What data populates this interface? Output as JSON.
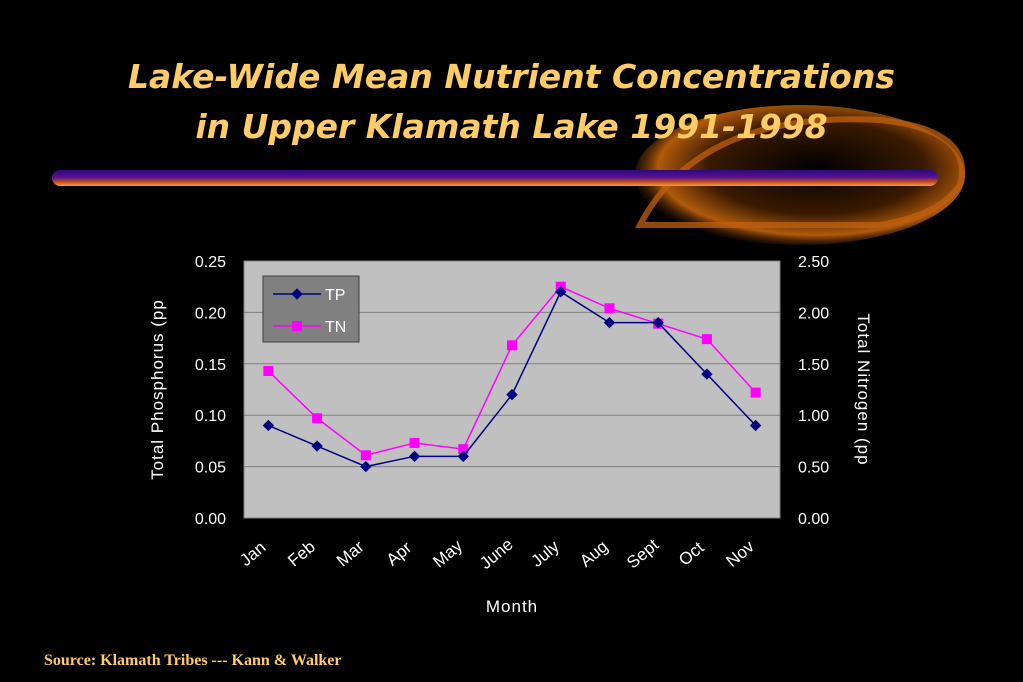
{
  "slide": {
    "title_line1": "Lake-Wide Mean Nutrient Concentrations",
    "title_line2": "in Upper Klamath Lake 1991-1998",
    "source": "Source:  Klamath Tribes --- Kann & Walker"
  },
  "colors": {
    "title": "#ffcc66",
    "plot_bg": "#c0c0c0",
    "tp": "#000080",
    "tn": "#ff00ff",
    "legend_bg": "#808080"
  },
  "chart_data": {
    "type": "line",
    "categories": [
      "Jan",
      "Feb",
      "Mar",
      "Apr",
      "May",
      "June",
      "July",
      "Aug",
      "Sept",
      "Oct",
      "Nov"
    ],
    "series": [
      {
        "name": "TP",
        "axis": "left",
        "marker": "diamond",
        "values": [
          0.09,
          0.07,
          0.05,
          0.06,
          0.06,
          0.12,
          0.22,
          0.19,
          0.19,
          0.14,
          0.09
        ]
      },
      {
        "name": "TN",
        "axis": "right",
        "marker": "square",
        "values": [
          1.43,
          0.97,
          0.61,
          0.73,
          0.67,
          1.68,
          2.25,
          2.04,
          1.89,
          1.74,
          1.22
        ]
      }
    ],
    "xlabel": "Month",
    "ylabel_left": "Total Phosphorus (pp",
    "ylabel_right": "Total Nitrogen (pp",
    "ylim_left": [
      0,
      0.25
    ],
    "ylim_right": [
      0,
      2.5
    ],
    "yticks_left": [
      "0.00",
      "0.05",
      "0.10",
      "0.15",
      "0.20",
      "0.25"
    ],
    "yticks_right": [
      "0.00",
      "0.50",
      "1.00",
      "1.50",
      "2.00",
      "2.50"
    ],
    "grid": true,
    "legend": "top-left"
  }
}
